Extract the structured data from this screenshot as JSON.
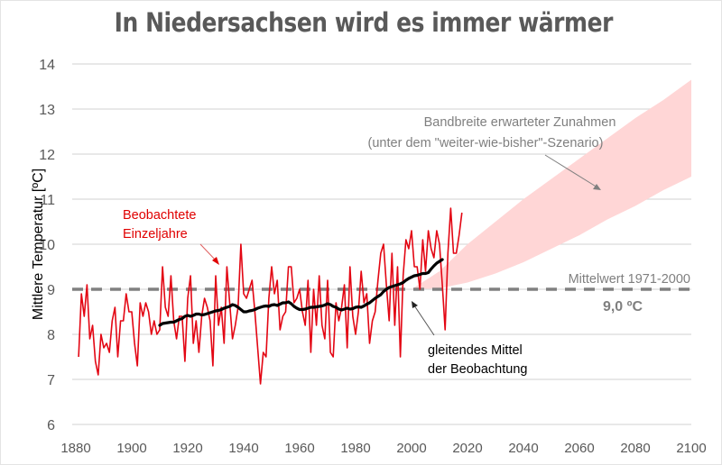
{
  "chart_data": {
    "type": "line",
    "title": "In Niedersachsen wird es immer wärmer",
    "xlabel": "",
    "ylabel": "Mittlere Temperatur [ºC]",
    "xlim": [
      1880,
      2100
    ],
    "ylim": [
      6,
      14
    ],
    "x_ticks": [
      "1880",
      "1900",
      "1920",
      "1940",
      "1960",
      "1980",
      "2000",
      "2020",
      "2040",
      "2060",
      "2080",
      "2100"
    ],
    "y_ticks": [
      "6",
      "7",
      "8",
      "9",
      "10",
      "11",
      "12",
      "13",
      "14"
    ],
    "grid": "horizontal",
    "colors": {
      "observed": "#e30613",
      "moving_average": "#000000",
      "band": "#ffd6d6",
      "reference": "#808080",
      "grid": "#d9d9d9"
    },
    "series": [
      {
        "name": "Beobachtete Einzeljahre",
        "type": "line",
        "x_start": 1881,
        "values": [
          7.5,
          8.9,
          8.4,
          9.1,
          7.9,
          8.2,
          7.4,
          7.1,
          8.0,
          7.7,
          7.8,
          7.6,
          8.3,
          8.6,
          7.5,
          8.3,
          8.3,
          8.9,
          8.5,
          8.5,
          7.8,
          7.3,
          8.7,
          8.4,
          8.7,
          8.5,
          8.0,
          8.3,
          8.0,
          8.1,
          9.5,
          8.6,
          8.4,
          9.3,
          8.3,
          7.9,
          8.4,
          8.4,
          7.4,
          8.8,
          9.3,
          7.8,
          8.3,
          7.6,
          8.4,
          8.8,
          8.6,
          8.3,
          7.3,
          9.3,
          8.2,
          8.6,
          7.8,
          9.5,
          8.7,
          7.9,
          8.2,
          8.6,
          10.0,
          8.9,
          8.8,
          9.0,
          9.2,
          8.5,
          7.7,
          6.9,
          7.6,
          7.5,
          8.8,
          9.5,
          8.9,
          9.2,
          8.1,
          8.4,
          8.5,
          9.5,
          9.5,
          8.7,
          8.8,
          9.0,
          8.5,
          8.2,
          9.2,
          7.6,
          9.0,
          8.2,
          9.3,
          8.2,
          7.9,
          9.2,
          7.6,
          7.5,
          8.7,
          8.3,
          8.6,
          9.1,
          7.7,
          9.5,
          8.4,
          8.0,
          8.5,
          9.4,
          8.7,
          8.9,
          7.8,
          8.3,
          8.5,
          9.2,
          9.8,
          10.0,
          9.1,
          8.3,
          9.8,
          8.2,
          9.5,
          7.5,
          9.3,
          10.1,
          9.9,
          10.3,
          9.5,
          9.5,
          9.0,
          10.1,
          9.4,
          10.3,
          9.9,
          9.7,
          10.3,
          10.0,
          9.1,
          8.1,
          9.8,
          10.8,
          9.8,
          9.8,
          10.2,
          10.7
        ]
      },
      {
        "name": "gleitendes Mittel der Beobachtung",
        "type": "line",
        "x_start": 1910,
        "values": [
          8.2,
          8.24,
          8.25,
          8.26,
          8.27,
          8.27,
          8.3,
          8.33,
          8.35,
          8.4,
          8.42,
          8.4,
          8.42,
          8.45,
          8.45,
          8.43,
          8.44,
          8.46,
          8.48,
          8.5,
          8.52,
          8.53,
          8.55,
          8.58,
          8.6,
          8.62,
          8.66,
          8.64,
          8.6,
          8.55,
          8.5,
          8.5,
          8.52,
          8.53,
          8.55,
          8.58,
          8.6,
          8.62,
          8.63,
          8.62,
          8.65,
          8.66,
          8.64,
          8.67,
          8.7,
          8.7,
          8.72,
          8.68,
          8.62,
          8.58,
          8.55,
          8.55,
          8.56,
          8.58,
          8.6,
          8.6,
          8.61,
          8.62,
          8.63,
          8.65,
          8.68,
          8.66,
          8.62,
          8.6,
          8.56,
          8.54,
          8.56,
          8.58,
          8.56,
          8.57,
          8.6,
          8.61,
          8.6,
          8.63,
          8.67,
          8.7,
          8.75,
          8.8,
          8.84,
          8.88,
          8.95,
          9.0,
          9.04,
          9.06,
          9.08,
          9.1,
          9.12,
          9.15,
          9.2,
          9.24,
          9.27,
          9.3,
          9.31,
          9.33,
          9.35,
          9.35,
          9.37,
          9.45,
          9.52,
          9.58,
          9.62,
          9.66
        ]
      },
      {
        "name": "Bandbreite erwarteter Zunahmen (unter dem \"weiter-wie-bisher\"-Szenario)",
        "type": "area",
        "x": [
          2000,
          2010,
          2020,
          2030,
          2040,
          2050,
          2060,
          2070,
          2080,
          2090,
          2100
        ],
        "lower": [
          9.0,
          9.02,
          9.15,
          9.35,
          9.6,
          9.9,
          10.2,
          10.55,
          10.85,
          11.2,
          11.5
        ],
        "upper": [
          9.0,
          9.4,
          10.0,
          10.5,
          11.0,
          11.45,
          11.9,
          12.35,
          12.8,
          13.2,
          13.65
        ]
      },
      {
        "name": "Mittelwert 1971-2000",
        "type": "reference-line",
        "value": 9.0
      }
    ],
    "annotations": {
      "observed_label": [
        "Beobachtete",
        "Einzeljahre"
      ],
      "band_label": [
        "Bandbreite erwarteter Zunahmen",
        "(unter dem \"weiter-wie-bisher\"-Szenario)"
      ],
      "reference_label": "Mittelwert 1971-2000",
      "reference_value_label": "9,0 ºC",
      "moving_average_label": [
        "gleitendes Mittel",
        "der Beobachtung"
      ]
    }
  }
}
